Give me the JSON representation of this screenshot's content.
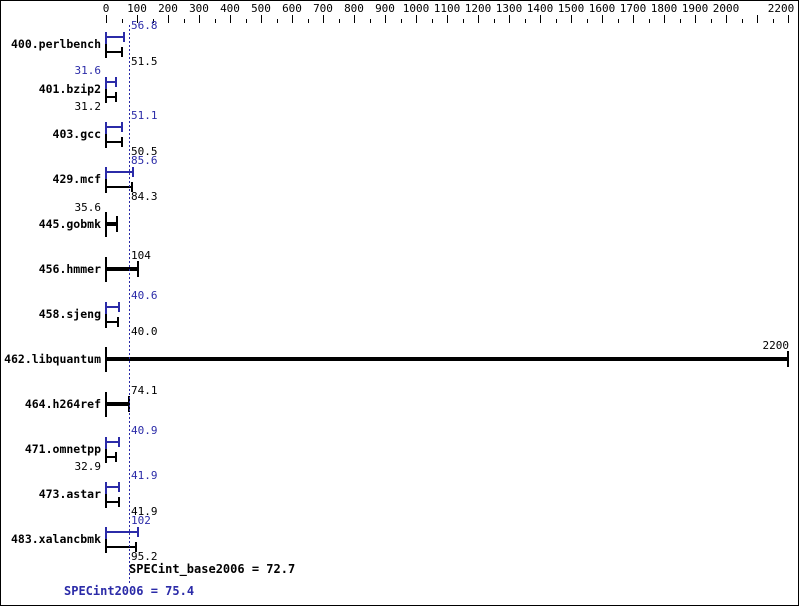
{
  "chart_data": {
    "type": "bar",
    "orientation": "horizontal",
    "title": "",
    "xlabel": "",
    "ylabel": "",
    "grid": false,
    "legend": false,
    "x_axis": {
      "min": 0,
      "max": 2200,
      "major_tick_interval": 100,
      "minor_tick_interval": 50,
      "tick_label_values": [
        0,
        100,
        200,
        300,
        400,
        500,
        600,
        700,
        800,
        900,
        1000,
        1100,
        1200,
        1300,
        1400,
        1500,
        1600,
        1700,
        1800,
        1900,
        2000,
        2200
      ],
      "tick_labels": [
        "0",
        "100",
        "200",
        "300",
        "400",
        "500",
        "600",
        "700",
        "800",
        "900",
        "1000",
        "1100",
        "1200",
        "1300",
        "1400",
        "1500",
        "1600",
        "1700",
        "1800",
        "1900",
        "2000",
        "2200"
      ]
    },
    "series_colors": {
      "peak": "#2b2ba8",
      "base": "#000000"
    },
    "benchmarks": [
      {
        "name": "400.perlbench",
        "peak": {
          "value": 56.8,
          "label": "56.8",
          "label_side": "right"
        },
        "base": {
          "value": 51.5,
          "label": "51.5",
          "label_side": "right"
        },
        "single": null
      },
      {
        "name": "401.bzip2",
        "peak": {
          "value": 31.6,
          "label": "31.6",
          "label_side": "left"
        },
        "base": {
          "value": 31.2,
          "label": "31.2",
          "label_side": "left"
        },
        "single": null
      },
      {
        "name": "403.gcc",
        "peak": {
          "value": 51.1,
          "label": "51.1",
          "label_side": "right"
        },
        "base": {
          "value": 50.5,
          "label": "50.5",
          "label_side": "right"
        },
        "single": null
      },
      {
        "name": "429.mcf",
        "peak": {
          "value": 85.6,
          "label": "85.6",
          "label_side": "right"
        },
        "base": {
          "value": 84.3,
          "label": "84.3",
          "label_side": "right"
        },
        "single": null
      },
      {
        "name": "445.gobmk",
        "peak": null,
        "base": null,
        "single": {
          "value": 35.6,
          "label": "35.6",
          "label_side": "left"
        }
      },
      {
        "name": "456.hmmer",
        "peak": null,
        "base": null,
        "single": {
          "value": 104,
          "label": "104",
          "label_side": "right"
        }
      },
      {
        "name": "458.sjeng",
        "peak": {
          "value": 40.6,
          "label": "40.6",
          "label_side": "right"
        },
        "base": {
          "value": 40.0,
          "label": "40.0",
          "label_side": "right"
        },
        "single": null
      },
      {
        "name": "462.libquantum",
        "peak": null,
        "base": null,
        "single": {
          "value": 2200,
          "label": "2200",
          "label_side": "end"
        }
      },
      {
        "name": "464.h264ref",
        "peak": null,
        "base": null,
        "single": {
          "value": 74.1,
          "label": "74.1",
          "label_side": "right"
        }
      },
      {
        "name": "471.omnetpp",
        "peak": {
          "value": 40.9,
          "label": "40.9",
          "label_side": "right"
        },
        "base": {
          "value": 32.9,
          "label": "32.9",
          "label_side": "left"
        },
        "single": null
      },
      {
        "name": "473.astar",
        "peak": {
          "value": 41.9,
          "label": "41.9",
          "label_side": "right"
        },
        "base": {
          "value": 41.9,
          "label": "41.9",
          "label_side": "right"
        },
        "single": null
      },
      {
        "name": "483.xalancbmk",
        "peak": {
          "value": 102,
          "label": "102",
          "label_side": "right"
        },
        "base": {
          "value": 95.2,
          "label": "95.2",
          "label_side": "right"
        },
        "single": null
      }
    ],
    "reference_line": {
      "value": 72.7,
      "style": "dotted",
      "color": "#2b2ba8"
    },
    "metrics": {
      "base_text": "SPECint_base2006 = 72.7",
      "base_value": 72.7,
      "peak_text": "SPECint2006 = 75.4",
      "peak_value": 75.4
    }
  }
}
